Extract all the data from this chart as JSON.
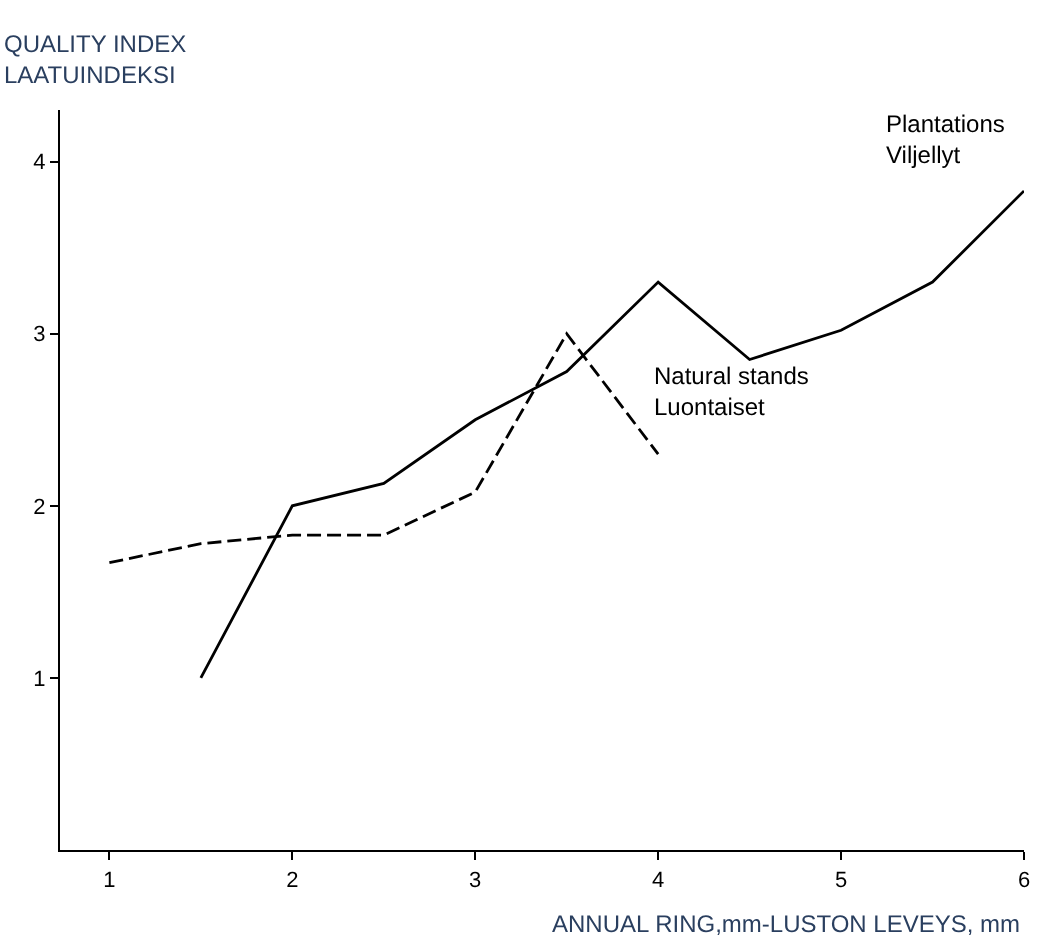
{
  "chart_data": {
    "type": "line",
    "ylabel": "QUALITY INDEX\nLAATUINDEKSI",
    "xlabel": "ANNUAL RING,mm-LUSTON LEVEYS, mm",
    "series": [
      {
        "name": "Plantations\nViljellyt",
        "color": "#000000",
        "line_style": "solid",
        "x": [
          1.5,
          2,
          2.5,
          3,
          3.5,
          4,
          4.5,
          5,
          5.5,
          6
        ],
        "values": [
          1.0,
          2.0,
          2.13,
          2.5,
          2.78,
          3.3,
          2.85,
          3.02,
          3.3,
          3.83
        ]
      },
      {
        "name": "Natural stands\nLuontaiset",
        "color": "#000000",
        "line_style": "dashed",
        "x": [
          1,
          1.5,
          2,
          2.5,
          3,
          3.5,
          4
        ],
        "values": [
          1.67,
          1.78,
          1.83,
          1.83,
          2.08,
          3.0,
          2.3
        ]
      }
    ],
    "xlim": [
      0.73,
      6
    ],
    "ylim": [
      0,
      4.3
    ],
    "xticks": [
      1,
      2,
      3,
      4,
      5,
      6
    ],
    "yticks": [
      1,
      2,
      3,
      4
    ],
    "grid": false,
    "legend": false,
    "marker": "none"
  }
}
